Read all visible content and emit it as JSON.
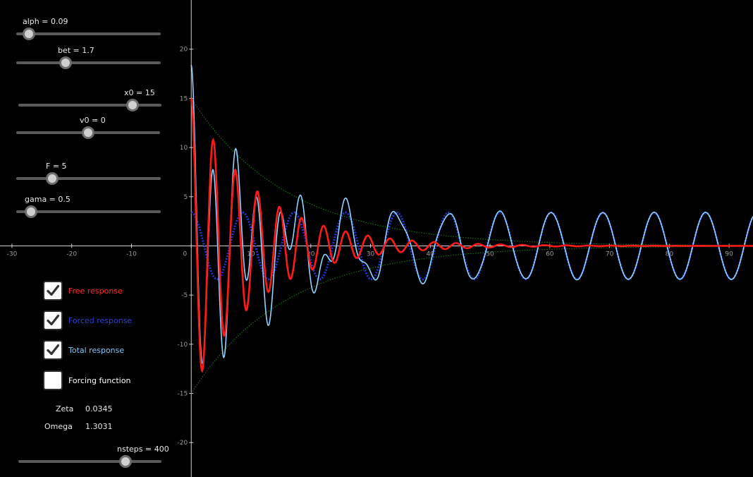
{
  "sliders": [
    {
      "id": "alph",
      "label": "alph = 0.09",
      "fraction": 0.09
    },
    {
      "id": "bet",
      "label": "bet = 1.7",
      "fraction": 0.34
    },
    {
      "id": "x0",
      "label": "x0 = 15",
      "fraction": 0.8
    },
    {
      "id": "v0",
      "label": "v0 = 0",
      "fraction": 0.5
    },
    {
      "id": "F",
      "label": "F = 5",
      "fraction": 0.25
    },
    {
      "id": "gama",
      "label": "gama = 0.5",
      "fraction": 0.1
    },
    {
      "id": "nsteps",
      "label": "nsteps = 400",
      "fraction": 0.75
    }
  ],
  "checkboxes": [
    {
      "id": "free",
      "label": "Free response",
      "checked": true,
      "color": "#ff2a2a"
    },
    {
      "id": "forced",
      "label": "Forced response",
      "checked": true,
      "color": "#2a3fdd"
    },
    {
      "id": "total",
      "label": "Total response",
      "checked": true,
      "color": "#7ec8f5"
    },
    {
      "id": "forcing",
      "label": "Forcing function",
      "checked": false,
      "color": "#ffffff"
    }
  ],
  "info": {
    "zeta_label": "Zeta",
    "zeta_value": "0.0345",
    "omega_label": "Omega",
    "omega_value": "1.3031"
  },
  "chart_data": {
    "type": "line",
    "x_ticks": [
      -30,
      -20,
      -10,
      0,
      10,
      20,
      30,
      40,
      50,
      60,
      70,
      80,
      90
    ],
    "y_ticks": [
      -20,
      -15,
      -10,
      -5,
      5,
      10,
      15,
      20
    ],
    "xlim": [
      -32,
      94
    ],
    "ylim": [
      -23.5,
      25
    ],
    "grid": false,
    "params": {
      "alph": 0.09,
      "bet": 1.7,
      "x0": 15,
      "v0": 0,
      "F": 5,
      "gama": 0.5
    },
    "series": [
      {
        "name": "Free response",
        "color": "#ff1a1a"
      },
      {
        "name": "Forced response",
        "color": "#1f3ad6",
        "amplitude": 3.4
      },
      {
        "name": "Total response",
        "color": "#8fd3ff"
      },
      {
        "name": "envelope",
        "color": "#118811"
      }
    ]
  }
}
